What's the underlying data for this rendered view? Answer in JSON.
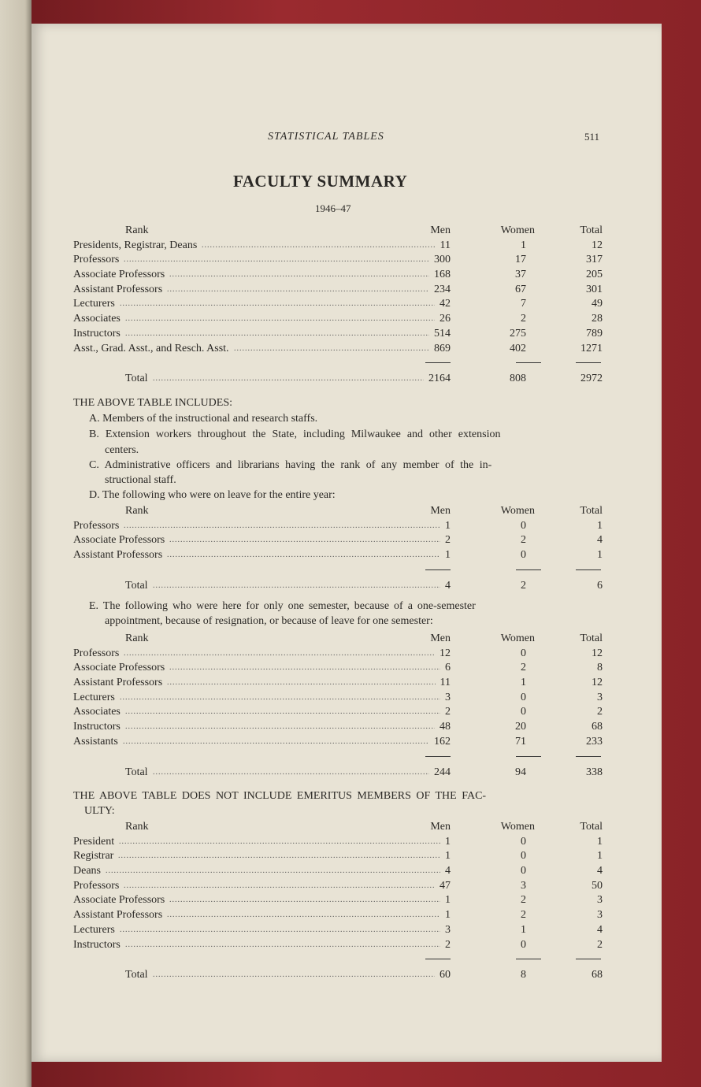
{
  "running_head": "STATISTICAL TABLES",
  "page_number": "511",
  "title": "FACULTY SUMMARY",
  "year": "1946–47",
  "columns": {
    "rank": "Rank",
    "men": "Men",
    "women": "Women",
    "total": "Total"
  },
  "main_table": {
    "rows": [
      {
        "rank": "Presidents, Registrar, Deans",
        "men": "11",
        "women": "1",
        "total": "12"
      },
      {
        "rank": "Professors",
        "men": "300",
        "women": "17",
        "total": "317"
      },
      {
        "rank": "Associate Professors",
        "men": "168",
        "women": "37",
        "total": "205"
      },
      {
        "rank": "Assistant Professors",
        "men": "234",
        "women": "67",
        "total": "301"
      },
      {
        "rank": "Lecturers",
        "men": "42",
        "women": "7",
        "total": "49"
      },
      {
        "rank": "Associates",
        "men": "26",
        "women": "2",
        "total": "28"
      },
      {
        "rank": "Instructors",
        "men": "514",
        "women": "275",
        "total": "789"
      },
      {
        "rank": "Asst., Grad. Asst., and Resch. Asst.",
        "men": "869",
        "women": "402",
        "total": "1271"
      }
    ],
    "total": {
      "rank": "Total",
      "men": "2164",
      "women": "808",
      "total": "2972"
    }
  },
  "includes": {
    "heading": "THE ABOVE TABLE INCLUDES:",
    "a": "A. Members of the instructional and research staffs.",
    "b1": "B. Extension workers throughout the State, including Milwaukee and other extension",
    "b2": "centers.",
    "c1": "C. Administrative officers and librarians having the rank of any member of the in-",
    "c2": "structional staff.",
    "d": "D. The following who were on leave for the entire year:",
    "e1": "E. The following who were here for only one semester, because of a one-semester",
    "e2": "appointment, because of resignation, or because of leave for one semester:"
  },
  "leave_table": {
    "rows": [
      {
        "rank": "Professors",
        "men": "1",
        "women": "0",
        "total": "1"
      },
      {
        "rank": "Associate Professors",
        "men": "2",
        "women": "2",
        "total": "4"
      },
      {
        "rank": "Assistant Professors",
        "men": "1",
        "women": "0",
        "total": "1"
      }
    ],
    "total": {
      "rank": "Total",
      "men": "4",
      "women": "2",
      "total": "6"
    }
  },
  "semester_table": {
    "rows": [
      {
        "rank": "Professors",
        "men": "12",
        "women": "0",
        "total": "12"
      },
      {
        "rank": "Associate Professors",
        "men": "6",
        "women": "2",
        "total": "8"
      },
      {
        "rank": "Assistant Professors",
        "men": "11",
        "women": "1",
        "total": "12"
      },
      {
        "rank": "Lecturers",
        "men": "3",
        "women": "0",
        "total": "3"
      },
      {
        "rank": "Associates",
        "men": "2",
        "women": "0",
        "total": "2"
      },
      {
        "rank": "Instructors",
        "men": "48",
        "women": "20",
        "total": "68"
      },
      {
        "rank": "Assistants",
        "men": "162",
        "women": "71",
        "total": "233"
      }
    ],
    "total": {
      "rank": "Total",
      "men": "244",
      "women": "94",
      "total": "338"
    }
  },
  "excludes": {
    "heading1": "THE ABOVE TABLE DOES NOT INCLUDE EMERITUS MEMBERS OF THE FAC-",
    "heading2": "ULTY:"
  },
  "emeritus_table": {
    "rows": [
      {
        "rank": "President",
        "men": "1",
        "women": "0",
        "total": "1"
      },
      {
        "rank": "Registrar",
        "men": "1",
        "women": "0",
        "total": "1"
      },
      {
        "rank": "Deans",
        "men": "4",
        "women": "0",
        "total": "4"
      },
      {
        "rank": "Professors",
        "men": "47",
        "women": "3",
        "total": "50"
      },
      {
        "rank": "Associate Professors",
        "men": "1",
        "women": "2",
        "total": "3"
      },
      {
        "rank": "Assistant Professors",
        "men": "1",
        "women": "2",
        "total": "3"
      },
      {
        "rank": "Lecturers",
        "men": "3",
        "women": "1",
        "total": "4"
      },
      {
        "rank": "Instructors",
        "men": "2",
        "women": "0",
        "total": "2"
      }
    ],
    "total": {
      "rank": "Total",
      "men": "60",
      "women": "8",
      "total": "68"
    }
  }
}
